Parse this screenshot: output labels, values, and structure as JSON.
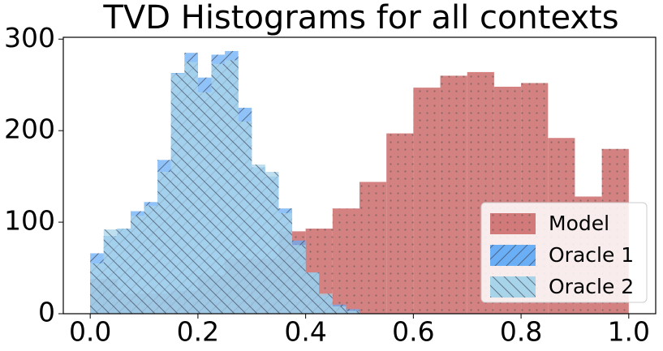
{
  "chart_data": {
    "type": "histogram",
    "title": "TVD Histograms for all contexts",
    "xlim": [
      -0.05,
      1.05
    ],
    "ylim": [
      0,
      302
    ],
    "xticks": [
      {
        "value": 0,
        "label": "0.0"
      },
      0.2,
      0.4,
      0.6,
      0.8,
      {
        "value": 1,
        "label": "1.0"
      }
    ],
    "yticks": [
      0,
      100,
      200,
      300
    ],
    "grid": false,
    "legend": "lower right",
    "series": [
      {
        "name": "Model",
        "color": "#d27a7a",
        "hatch": "dots",
        "bins": [
          0,
          0.05,
          0.1,
          0.15,
          0.2,
          0.25,
          0.3,
          0.35,
          0.4,
          0.45,
          0.5,
          0.55,
          0.6,
          0.65,
          0.7,
          0.75,
          0.8,
          0.85,
          0.9,
          0.95,
          1
        ],
        "values": [
          38,
          22,
          22,
          25,
          42,
          60,
          60,
          90,
          93,
          115,
          144,
          197,
          247,
          260,
          264,
          248,
          252,
          192,
          128,
          180
        ]
      },
      {
        "name": "Oracle 1",
        "color": "#6aaef5",
        "hatch": "/",
        "bins": [
          0,
          0.025,
          0.05,
          0.075,
          0.1,
          0.125,
          0.15,
          0.175,
          0.2,
          0.225,
          0.25,
          0.275,
          0.3,
          0.325,
          0.35,
          0.375,
          0.4,
          0.425,
          0.45,
          0.475,
          0.5
        ],
        "values": [
          66,
          85,
          93,
          112,
          122,
          168,
          263,
          285,
          258,
          283,
          287,
          225,
          160,
          150,
          115,
          80,
          45,
          20,
          10,
          5
        ]
      },
      {
        "name": "Oracle 2",
        "color": "#a8d4ea",
        "hatch": "\\",
        "bins": [
          0,
          0.025,
          0.05,
          0.075,
          0.1,
          0.125,
          0.15,
          0.175,
          0.2,
          0.225,
          0.25,
          0.275,
          0.3,
          0.325,
          0.35,
          0.375,
          0.4,
          0.425,
          0.45,
          0.475,
          0.5
        ],
        "values": [
          55,
          92,
          93,
          107,
          118,
          155,
          262,
          275,
          242,
          273,
          277,
          210,
          163,
          155,
          110,
          75,
          45,
          22,
          8,
          3
        ]
      }
    ]
  }
}
